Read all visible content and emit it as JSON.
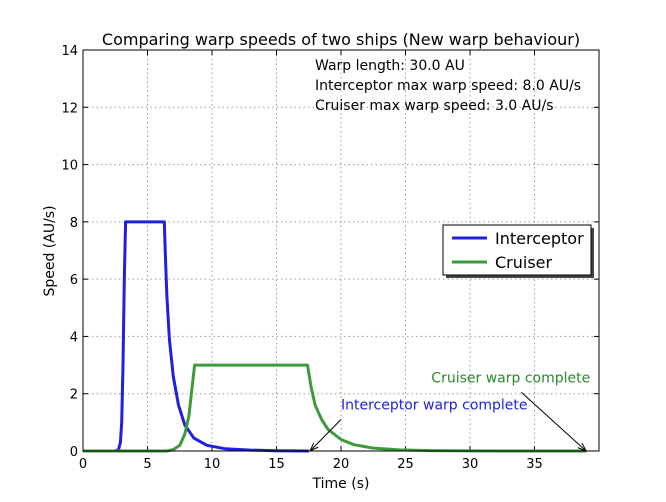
{
  "chart_data": {
    "type": "line",
    "title": "Comparing warp speeds of two ships (New warp behaviour)",
    "xlabel": "Time (s)",
    "ylabel": "Speed (AU/s)",
    "xlim": [
      0,
      40
    ],
    "ylim": [
      0,
      14
    ],
    "x_ticks": [
      0,
      5,
      10,
      15,
      20,
      25,
      30,
      35
    ],
    "y_ticks": [
      0,
      2,
      4,
      6,
      8,
      10,
      12,
      14
    ],
    "grid": true,
    "info_lines": [
      "Warp length: 30.0 AU",
      "Interceptor max warp speed: 8.0 AU/s",
      "Cruiser max warp speed: 3.0 AU/s"
    ],
    "legend": {
      "placement": "center-right"
    },
    "series": [
      {
        "name": "Interceptor",
        "color": "#1f1fe0",
        "points": [
          [
            0,
            0
          ],
          [
            2.5,
            0
          ],
          [
            2.75,
            0.05
          ],
          [
            2.9,
            0.3
          ],
          [
            3.0,
            1.0
          ],
          [
            3.1,
            3.0
          ],
          [
            3.2,
            6.0
          ],
          [
            3.3,
            8.0
          ],
          [
            6.3,
            8.0
          ],
          [
            6.4,
            6.6
          ],
          [
            6.5,
            5.4
          ],
          [
            6.7,
            3.9
          ],
          [
            7.0,
            2.6
          ],
          [
            7.4,
            1.6
          ],
          [
            7.9,
            0.9
          ],
          [
            8.6,
            0.45
          ],
          [
            9.6,
            0.2
          ],
          [
            11,
            0.08
          ],
          [
            13,
            0.03
          ],
          [
            15,
            0.01
          ],
          [
            17.5,
            0
          ]
        ]
      },
      {
        "name": "Cruiser",
        "color": "#3c9a3c",
        "points": [
          [
            0,
            0
          ],
          [
            6.5,
            0
          ],
          [
            7.0,
            0.05
          ],
          [
            7.5,
            0.2
          ],
          [
            7.9,
            0.6
          ],
          [
            8.2,
            1.2
          ],
          [
            8.4,
            2.0
          ],
          [
            8.55,
            2.6
          ],
          [
            8.65,
            3.0
          ],
          [
            17.4,
            3.0
          ],
          [
            17.7,
            2.2
          ],
          [
            18.0,
            1.6
          ],
          [
            18.5,
            1.1
          ],
          [
            19.0,
            0.75
          ],
          [
            20.0,
            0.4
          ],
          [
            21.0,
            0.22
          ],
          [
            22.5,
            0.1
          ],
          [
            24.5,
            0.04
          ],
          [
            27,
            0.015
          ],
          [
            30,
            0.005
          ],
          [
            33,
            0
          ],
          [
            39,
            0
          ]
        ]
      }
    ],
    "annotations": [
      {
        "text": "Interceptor warp complete",
        "color": "#1f1fe0",
        "text_x": 20,
        "text_y": 1.45,
        "arrow_to": [
          17.6,
          0
        ]
      },
      {
        "text": "Cruiser warp complete",
        "color": "#2a8a2a",
        "text_x": 27,
        "text_y": 2.4,
        "arrow_to": [
          39,
          0
        ]
      }
    ]
  }
}
